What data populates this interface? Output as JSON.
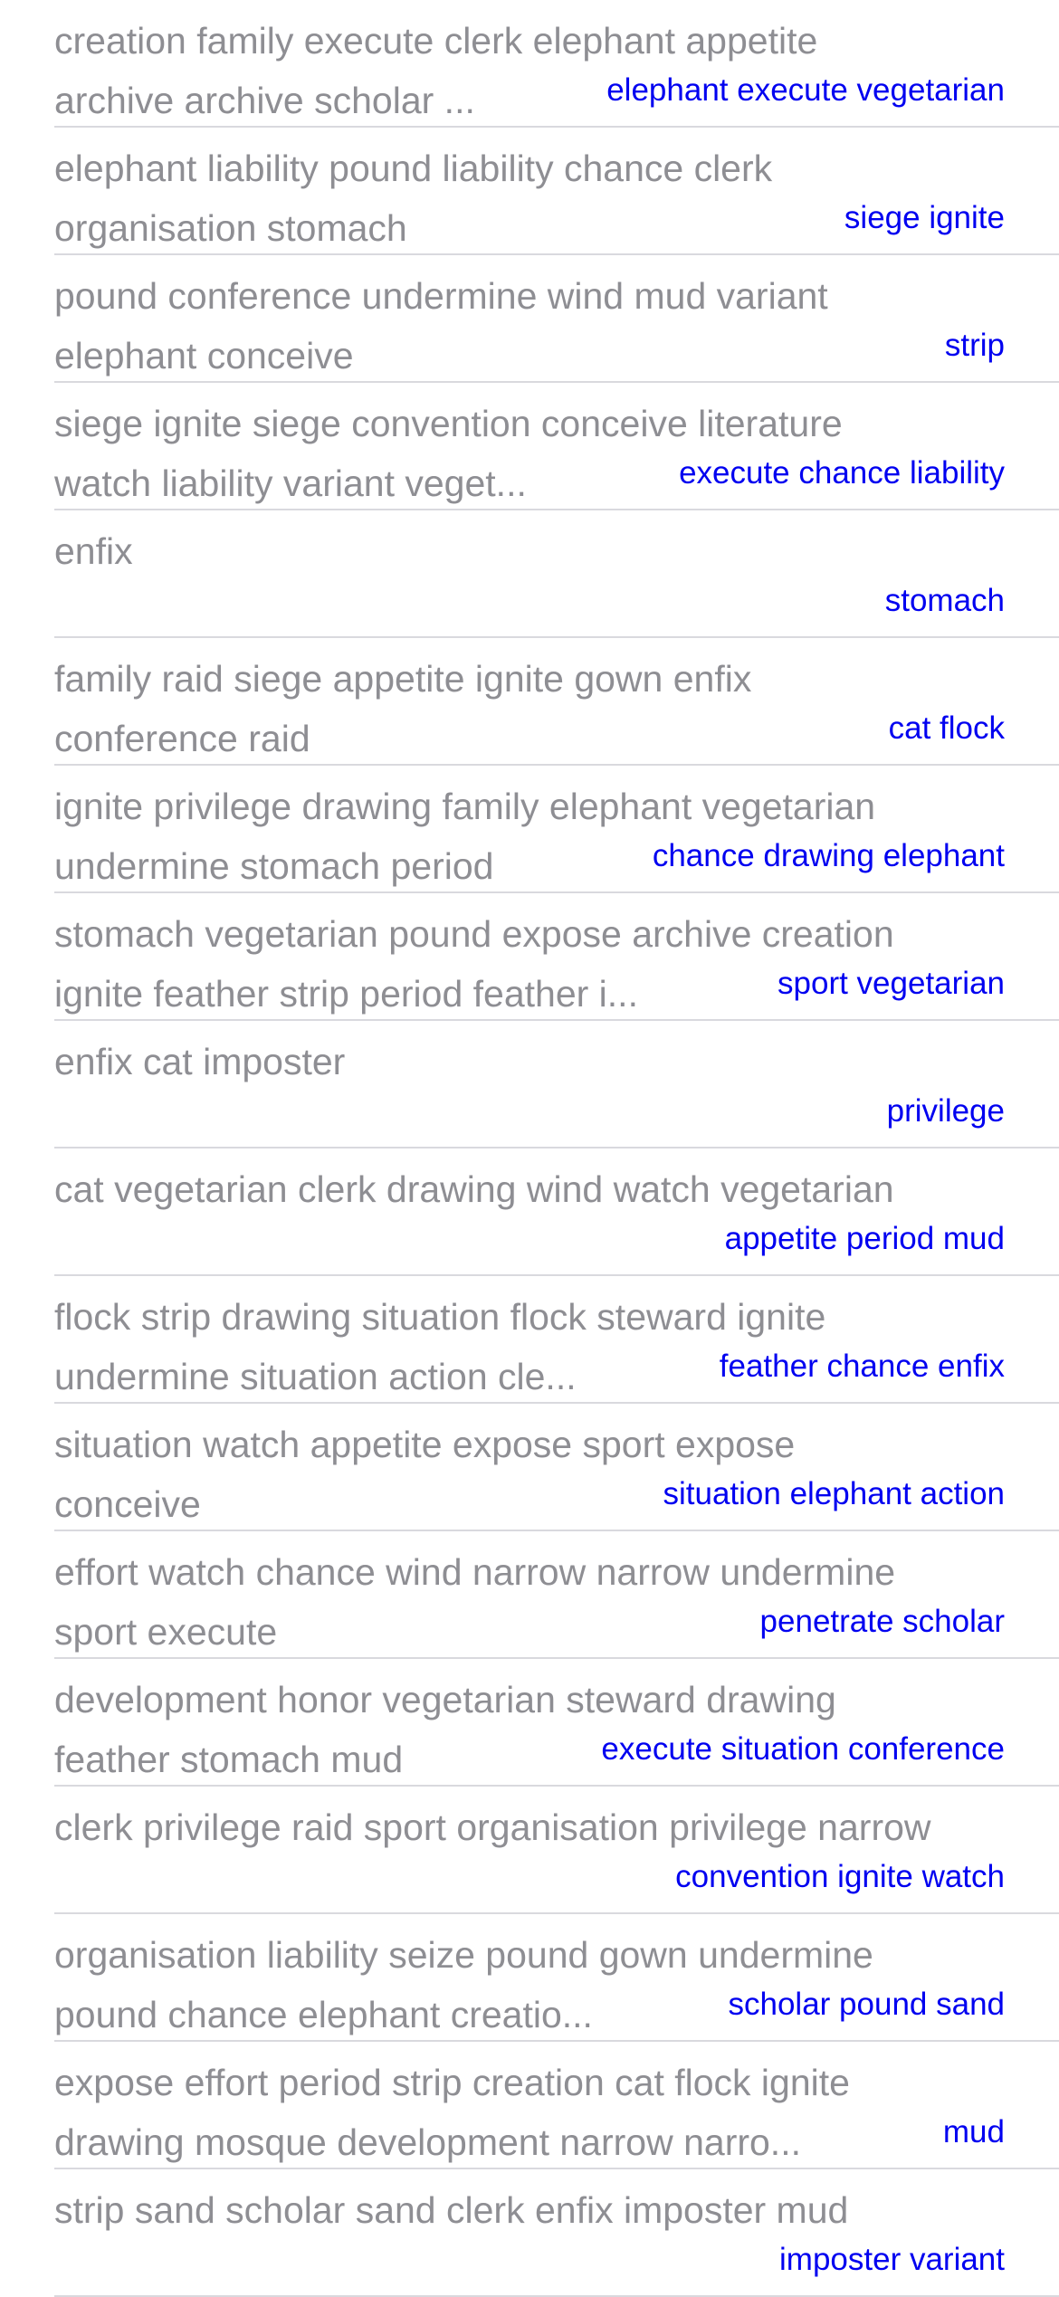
{
  "rows": [
    {
      "text": "creation family execute clerk elephant appetite\narchive archive scholar ...",
      "detail": "elephant execute vegetarian"
    },
    {
      "text": "elephant liability pound liability chance clerk\norganisation stomach",
      "detail": "siege ignite"
    },
    {
      "text": "pound conference undermine wind mud variant\nelephant conceive",
      "detail": "strip"
    },
    {
      "text": "siege ignite siege convention conceive literature\nwatch liability variant veget...",
      "detail": "execute chance liability"
    },
    {
      "text": "enfix",
      "detail": "stomach"
    },
    {
      "text": "family raid siege appetite ignite gown enfix\nconference raid",
      "detail": "cat flock"
    },
    {
      "text": "ignite privilege drawing family elephant vegetarian\nundermine stomach period",
      "detail": "chance drawing elephant"
    },
    {
      "text": "stomach vegetarian pound expose archive creation\nignite feather strip period feather i...",
      "detail": "sport vegetarian"
    },
    {
      "text": "enfix cat imposter",
      "detail": "privilege"
    },
    {
      "text": "cat vegetarian clerk drawing wind watch vegetarian",
      "detail": "appetite period mud"
    },
    {
      "text": "flock strip drawing situation flock steward ignite\nundermine situation action cle...",
      "detail": "feather chance enfix"
    },
    {
      "text": "situation watch appetite expose sport expose\nconceive",
      "detail": "situation elephant action"
    },
    {
      "text": "effort watch chance wind narrow narrow undermine\nsport execute",
      "detail": "penetrate scholar"
    },
    {
      "text": "development honor vegetarian steward drawing\nfeather stomach mud",
      "detail": "execute situation conference"
    },
    {
      "text": "clerk privilege raid sport organisation privilege narrow",
      "detail": "convention ignite watch"
    },
    {
      "text": "organisation liability seize pound gown undermine\npound chance elephant creatio...",
      "detail": "scholar pound sand"
    },
    {
      "text": "expose effort period strip creation cat flock ignite\ndrawing mosque development narrow narro...",
      "detail": "mud"
    },
    {
      "text": "strip sand scholar sand clerk enfix imposter mud",
      "detail": "imposter variant"
    }
  ]
}
